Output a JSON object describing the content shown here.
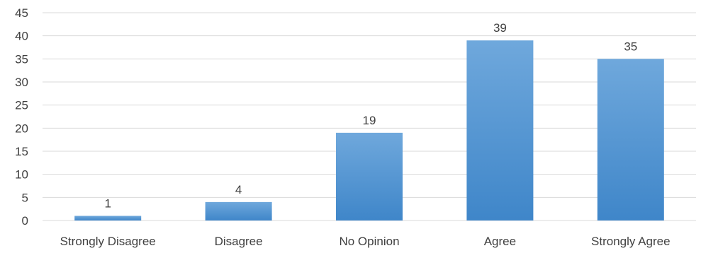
{
  "chart_data": {
    "type": "bar",
    "title": "",
    "xlabel": "",
    "ylabel": "",
    "categories": [
      "Strongly Disagree",
      "Disagree",
      "No Opinion",
      "Agree",
      "Strongly Agree"
    ],
    "values": [
      1,
      4,
      19,
      39,
      35
    ],
    "data_labels": [
      "1",
      "4",
      "19",
      "39",
      "35"
    ],
    "ylim": [
      0,
      45
    ],
    "yticks": [
      0,
      5,
      10,
      15,
      20,
      25,
      30,
      35,
      40,
      45
    ],
    "grid": true,
    "legend": "none",
    "colors": {
      "bar_top": "#6fa8dc",
      "bar_bottom": "#3f86c9",
      "grid": "#d9d9d9",
      "text": "#404040"
    }
  }
}
